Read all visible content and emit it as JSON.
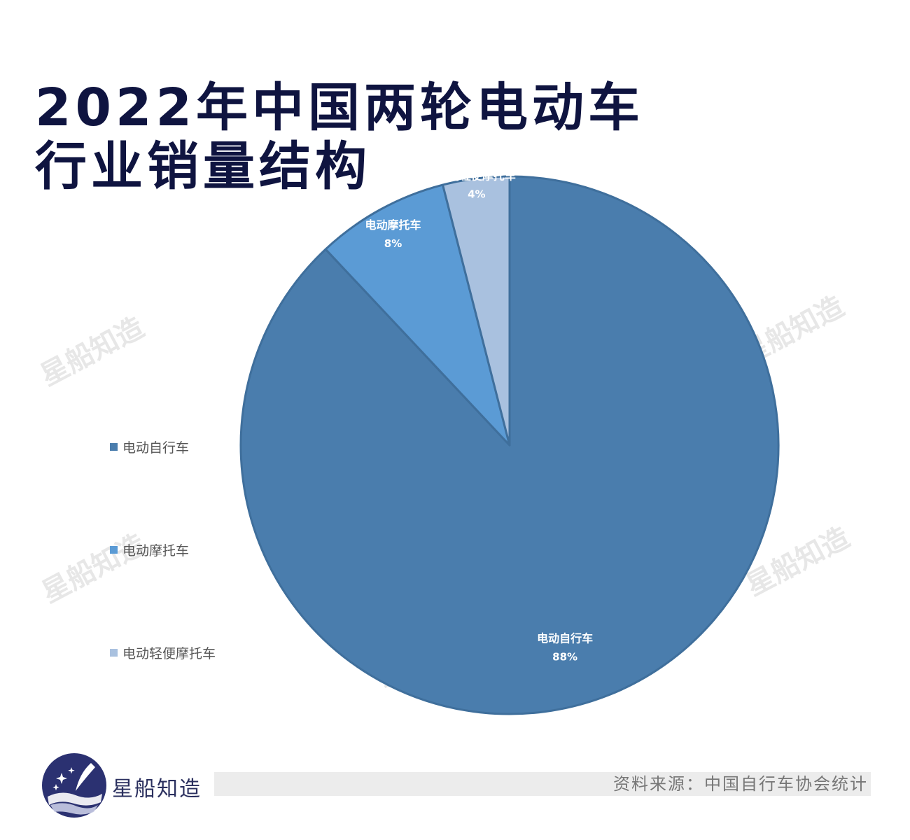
{
  "title": {
    "line1": "2022年中国两轮电动车",
    "line2": "行业销量结构"
  },
  "chart_data": {
    "type": "pie",
    "title": "2022年中国两轮电动车行业销量结构",
    "slices": [
      {
        "label": "电动自行车",
        "value": 88,
        "display": "88%",
        "color": "#4a7dad"
      },
      {
        "label": "电动摩托车",
        "value": 8,
        "display": "8%",
        "color": "#5b9bd5"
      },
      {
        "label": "电动轻便摩托车",
        "value": 4,
        "display": "4%",
        "color": "#a9c1df"
      }
    ],
    "legend_position": "left"
  },
  "legend": {
    "items": [
      {
        "label": "电动自行车",
        "color": "#4a7dad"
      },
      {
        "label": "电动摩托车",
        "color": "#5b9bd5"
      },
      {
        "label": "电动轻便摩托车",
        "color": "#a9c1df"
      }
    ]
  },
  "watermark": "星船知造",
  "footer": {
    "brand": "星船知造",
    "source": "资料来源：中国自行车协会统计",
    "logo_icon": "quill-star-logo-icon"
  }
}
